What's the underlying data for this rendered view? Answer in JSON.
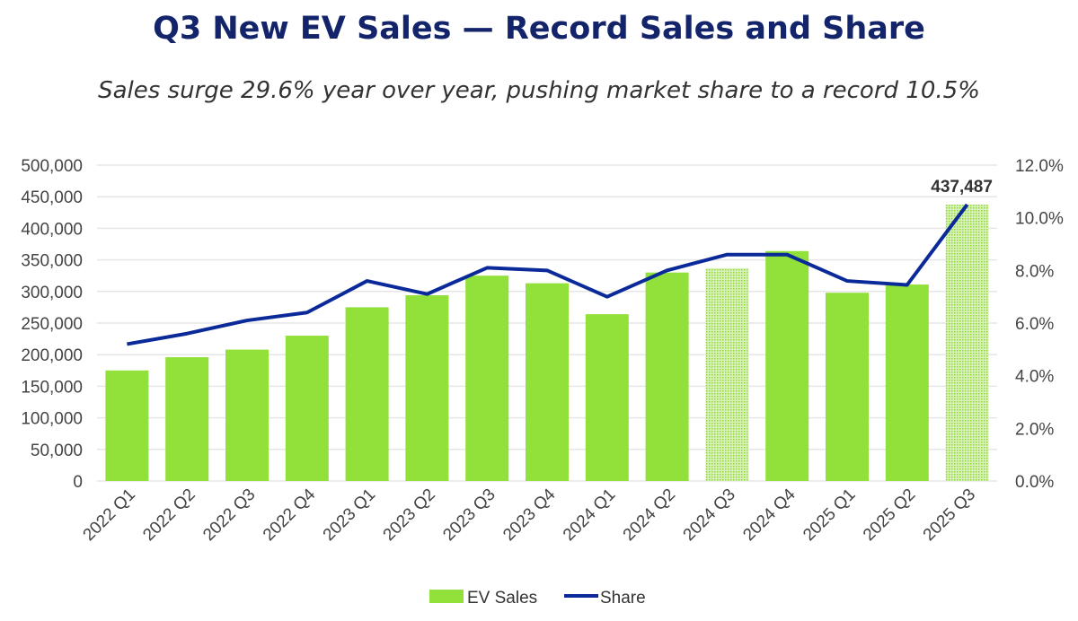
{
  "chart_data": {
    "type": "bar",
    "title": "Q3 New EV Sales — Record Sales and Share",
    "subtitle": "Sales surge 29.6% year over year, pushing market share to a record 10.5%",
    "categories": [
      "2022 Q1",
      "2022 Q2",
      "2022 Q3",
      "2022 Q4",
      "2023 Q1",
      "2023 Q2",
      "2023 Q3",
      "2023 Q4",
      "2024 Q1",
      "2024 Q2",
      "2024 Q3",
      "2024 Q4",
      "2025 Q1",
      "2025 Q2",
      "2025 Q3"
    ],
    "series": [
      {
        "name": "EV Sales",
        "type": "bar",
        "axis": "left",
        "color": "#92e03a",
        "values": [
          175000,
          196000,
          208000,
          230000,
          275000,
          294000,
          325000,
          313000,
          264000,
          330000,
          337000,
          364000,
          298000,
          311000,
          437487
        ],
        "hatched": [
          "2024 Q3",
          "2025 Q3"
        ]
      },
      {
        "name": "Share",
        "type": "line",
        "axis": "right",
        "color": "#0a2a9a",
        "values": [
          5.2,
          5.6,
          6.1,
          6.4,
          7.6,
          7.1,
          8.1,
          8.0,
          7.0,
          8.0,
          8.6,
          8.6,
          7.6,
          7.45,
          10.5
        ]
      }
    ],
    "data_labels": [
      {
        "category": "2025 Q3",
        "text": "437,487"
      }
    ],
    "y_left": {
      "range": [
        0,
        500000
      ],
      "ticks": [
        "0",
        "50,000",
        "100,000",
        "150,000",
        "200,000",
        "250,000",
        "300,000",
        "350,000",
        "400,000",
        "450,000",
        "500,000"
      ]
    },
    "y_right": {
      "range": [
        0,
        12
      ],
      "ticks": [
        "0.0%",
        "2.0%",
        "4.0%",
        "6.0%",
        "8.0%",
        "10.0%",
        "12.0%"
      ]
    },
    "grid": true,
    "legend": "bottom"
  }
}
